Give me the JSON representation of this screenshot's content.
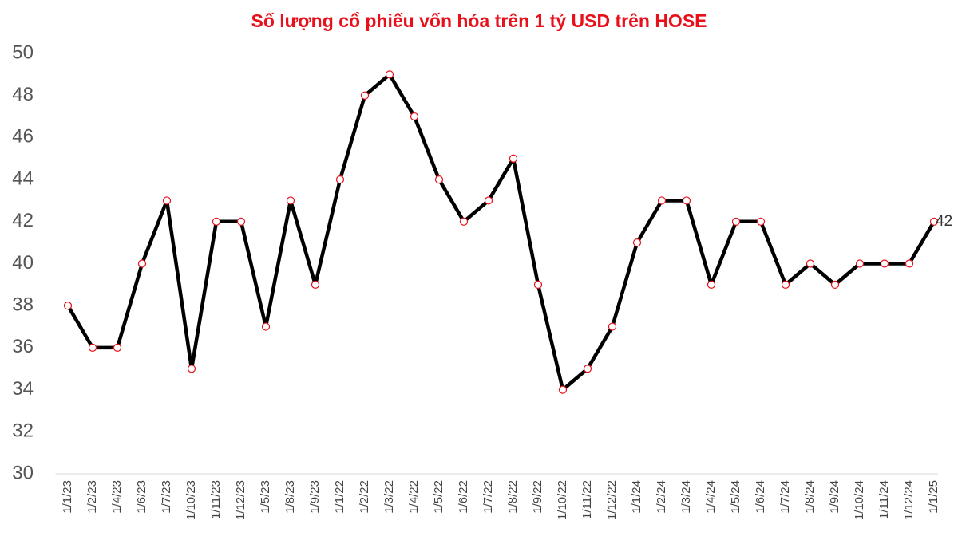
{
  "chart_data": {
    "type": "line",
    "title": "Số lượng cổ phiếu vốn hóa trên 1 tỷ USD trên HOSE",
    "categories": [
      "1/1/23",
      "1/2/23",
      "1/4/23",
      "1/6/23",
      "1/7/23",
      "1/10/23",
      "1/11/23",
      "1/12/23",
      "1/5/23",
      "1/8/23",
      "1/9/23",
      "1/1/22",
      "1/2/22",
      "1/3/22",
      "1/4/22",
      "1/5/22",
      "1/6/22",
      "1/7/22",
      "1/8/22",
      "1/9/22",
      "1/10/22",
      "1/11/22",
      "1/12/22",
      "1/1/24",
      "1/2/24",
      "1/3/24",
      "1/4/24",
      "1/5/24",
      "1/6/24",
      "1/7/24",
      "1/8/24",
      "1/9/24",
      "1/10/24",
      "1/11/24",
      "1/12/24",
      "1/1/25"
    ],
    "values": [
      38,
      36,
      36,
      40,
      43,
      35,
      42,
      42,
      37,
      43,
      39,
      44,
      48,
      49,
      47,
      44,
      42,
      43,
      45,
      39,
      34,
      35,
      37,
      41,
      43,
      43,
      39,
      42,
      42,
      39,
      40,
      39,
      40,
      40,
      40,
      42
    ],
    "color": "#000000",
    "marker_edge_color": "#e8101a",
    "title_color": "#e8101a",
    "ylim": [
      30,
      50
    ],
    "yticks": [
      30,
      32,
      34,
      36,
      38,
      40,
      42,
      44,
      46,
      48,
      50
    ],
    "grid": false,
    "label_last": true
  }
}
